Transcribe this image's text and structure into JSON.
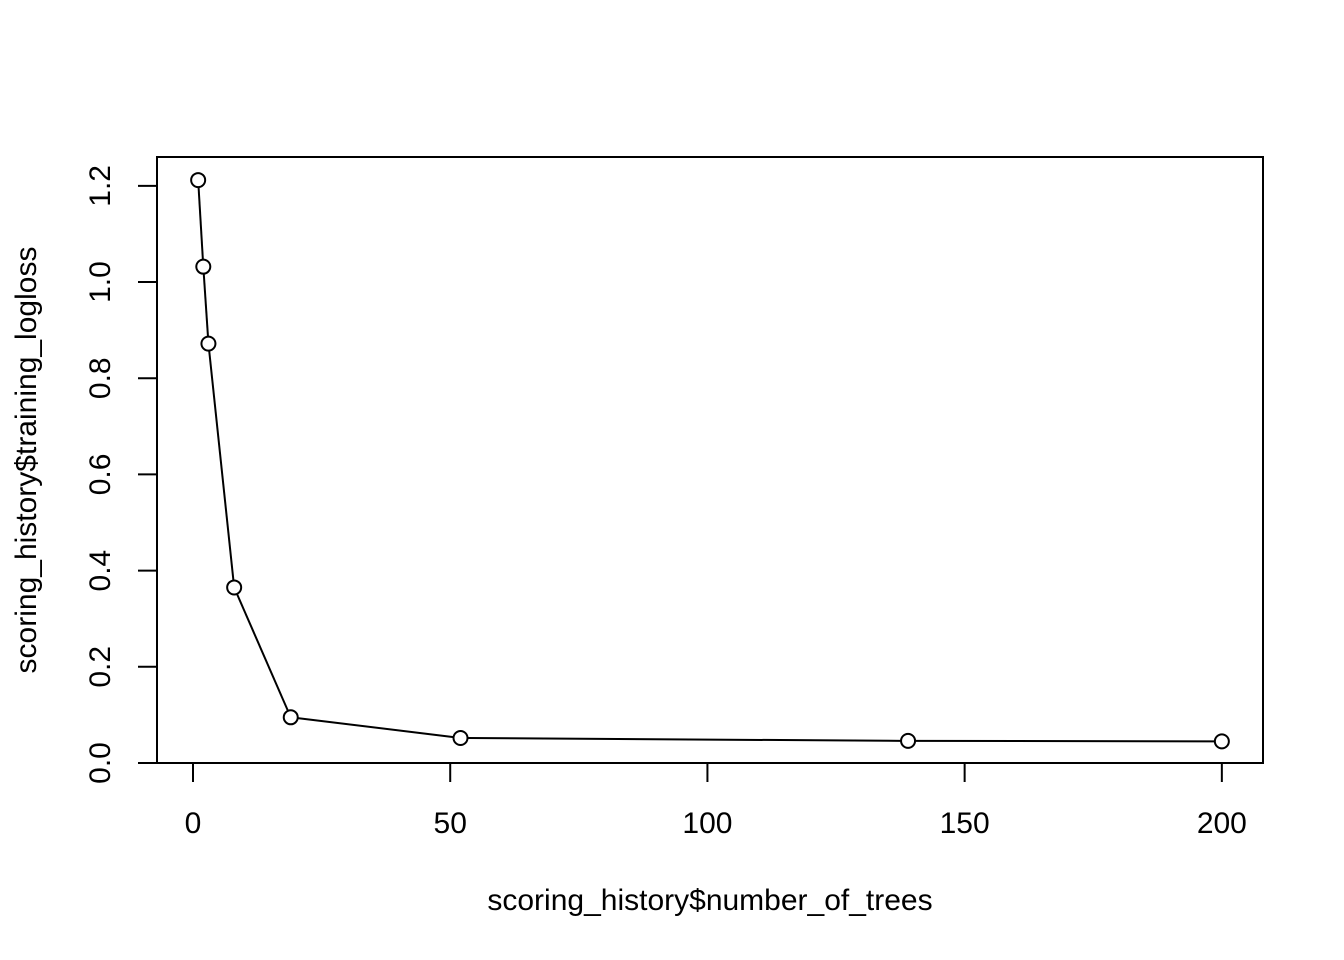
{
  "chart_data": {
    "type": "line",
    "title": "",
    "xlabel": "scoring_history$number_of_trees",
    "ylabel": "scoring_history$training_logloss",
    "x": [
      1,
      2,
      3,
      8,
      19,
      52,
      139,
      200
    ],
    "series": [
      {
        "values": [
          1.212,
          1.032,
          0.872,
          0.365,
          0.095,
          0.052,
          0.046,
          0.045
        ]
      }
    ],
    "xlim": [
      -7.0,
      208.0
    ],
    "ylim": [
      0.0,
      1.26
    ],
    "x_ticks": [
      0,
      50,
      100,
      150,
      200
    ],
    "x_tick_labels": [
      "0",
      "50",
      "100",
      "150",
      "200"
    ],
    "y_ticks": [
      0.0,
      0.2,
      0.4,
      0.6,
      0.8,
      1.0,
      1.2
    ],
    "y_tick_labels": [
      "0.0",
      "0.2",
      "0.4",
      "0.6",
      "0.8",
      "1.0",
      "1.2"
    ],
    "markers": "open-circle",
    "grid": false,
    "legend": "none",
    "line_color": "#000000",
    "background": "#ffffff"
  }
}
